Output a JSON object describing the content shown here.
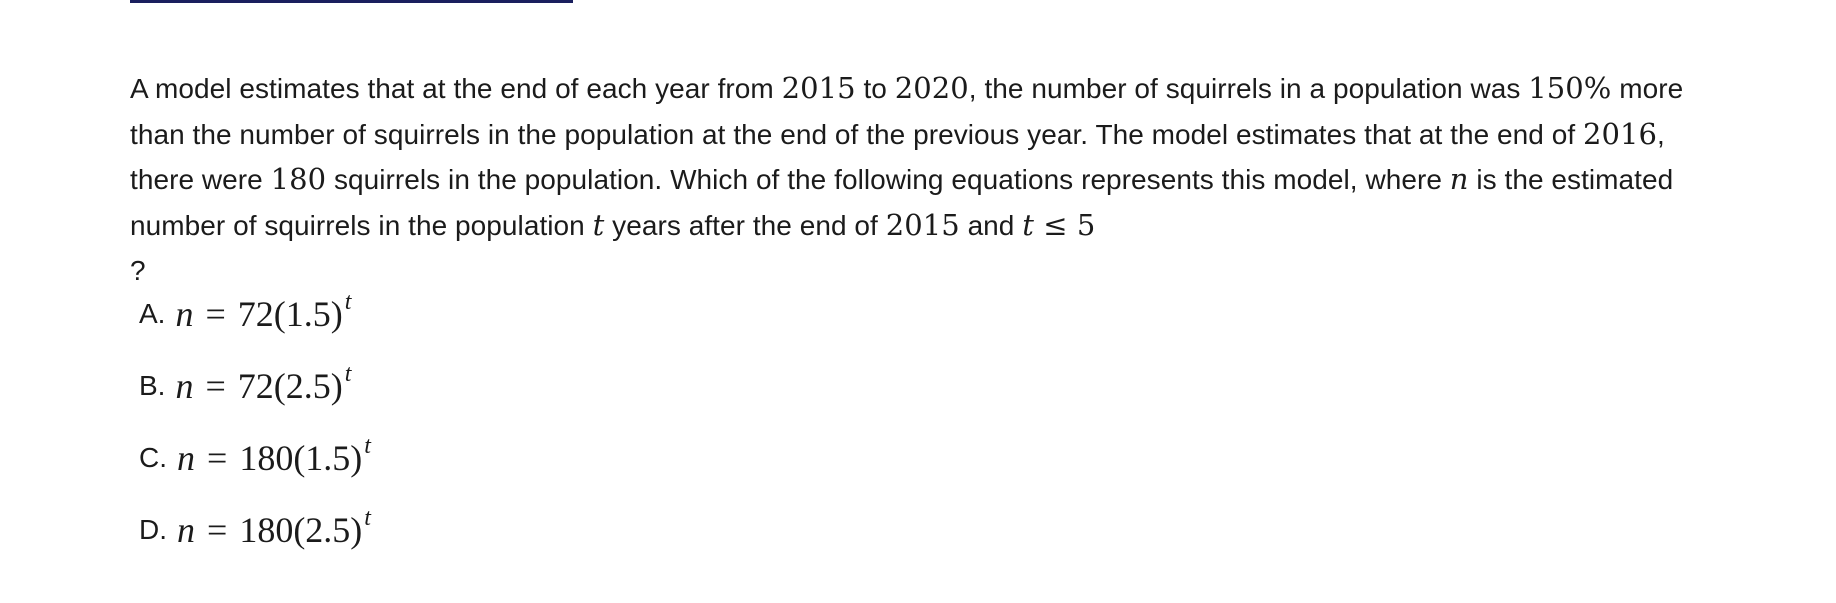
{
  "question": {
    "parts": [
      "A model estimates that at the end of each year from ",
      "2015",
      " to ",
      "2020",
      ", the number of squirrels in a population was ",
      "150%",
      " more than the number of squirrels in the population at the end of the previous year. The model estimates that at the end of ",
      "2016",
      ", there were ",
      "180",
      " squirrels in the population. Which of the following equations represents this model, where ",
      "n",
      " is the estimated number of squirrels in the population ",
      "t",
      " years after the end of ",
      "2015",
      " and ",
      "t",
      " ≤ ",
      "5",
      " ?"
    ]
  },
  "choices": [
    {
      "letter": "A.",
      "lhs": "n",
      "rel": "=",
      "rhs": "72(1.5)",
      "exp": "t"
    },
    {
      "letter": "B.",
      "lhs": "n",
      "rel": "=",
      "rhs": "72(2.5)",
      "exp": "t"
    },
    {
      "letter": "C.",
      "lhs": "n",
      "rel": "=",
      "rhs": "180(1.5)",
      "exp": "t"
    },
    {
      "letter": "D.",
      "lhs": "n",
      "rel": "=",
      "rhs": "180(2.5)",
      "exp": "t"
    }
  ]
}
